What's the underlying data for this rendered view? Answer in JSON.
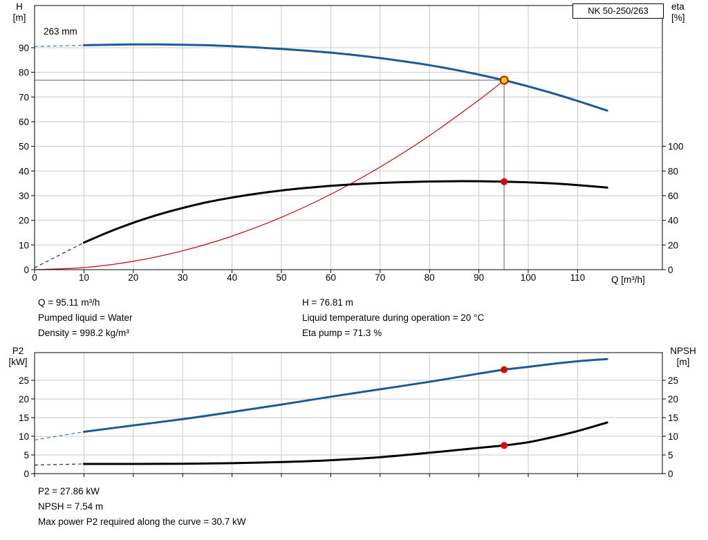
{
  "header": {
    "pump_name": "NK 50-250/263"
  },
  "top_chart": {
    "ylabel_left": [
      "H",
      "[m]"
    ],
    "ylabel_right": [
      "eta",
      "[%]"
    ],
    "xlabel": "Q [m³/h]",
    "impeller_label": "263 mm"
  },
  "bottom_chart": {
    "ylabel_left": [
      "P2",
      "[kW]"
    ],
    "ylabel_right": [
      "NPSH",
      "[m]"
    ]
  },
  "results_top": {
    "left": [
      "Q = 95.11 m³/h",
      "Pumped liquid = Water",
      "Density = 998.2 kg/m³"
    ],
    "right": [
      "H = 76.81 m",
      "Liquid temperature during operation = 20 °C",
      "Eta pump = 71.3 %"
    ]
  },
  "results_bottom": [
    "P2 = 27.86 kW",
    "NPSH = 7.54 m",
    "Max power P2 required along the curve = 30.7 kW"
  ],
  "colors": {
    "head": "#1a5a96",
    "eta": "#000000",
    "system": "#d40000",
    "marker": "#e00000",
    "duty_fill": "#ffd600"
  },
  "chart_data": [
    {
      "type": "line",
      "name": "head-efficiency-chart",
      "title": "NK 50-250/263",
      "xlabel": "Q [m³/h]",
      "ylabel": "H [m]",
      "y2label": "eta [%]",
      "xlim": [
        0,
        127.2
      ],
      "xticks": [
        0,
        10,
        20,
        30,
        40,
        50,
        60,
        70,
        80,
        90,
        100,
        110
      ],
      "ylim": [
        0,
        107.1
      ],
      "yticks": [
        0,
        10,
        20,
        30,
        40,
        50,
        60,
        70,
        80,
        90
      ],
      "y2lim": [
        0,
        214.3
      ],
      "y2ticks": [
        0,
        20,
        40,
        60,
        80,
        100
      ],
      "grid": true,
      "duty_point": {
        "x": 95.11,
        "y": 76.81,
        "y2": 71.3
      },
      "series": [
        {
          "name": "system-curve",
          "label": "System curve",
          "color": "#d40000",
          "width": 1.2,
          "axis": "y",
          "points": [
            [
              0,
              0
            ],
            [
              10,
              0.85
            ],
            [
              20,
              3.4
            ],
            [
              30,
              7.64
            ],
            [
              40,
              13.59
            ],
            [
              50,
              21.23
            ],
            [
              60,
              30.57
            ],
            [
              70,
              41.62
            ],
            [
              80,
              54.36
            ],
            [
              90,
              68.79
            ],
            [
              95.11,
              76.81
            ]
          ]
        },
        {
          "name": "efficiency-curve",
          "label": "Eta pump",
          "color": "#000000",
          "width": 3,
          "axis": "y2",
          "dash_lead": [
            [
              0,
              1.5
            ],
            [
              10,
              22
            ]
          ],
          "points": [
            [
              10,
              22
            ],
            [
              15,
              30.5
            ],
            [
              20,
              38
            ],
            [
              25,
              44.5
            ],
            [
              30,
              50
            ],
            [
              35,
              54.7
            ],
            [
              40,
              58.5
            ],
            [
              45,
              61.6
            ],
            [
              50,
              64.2
            ],
            [
              55,
              66.3
            ],
            [
              60,
              68
            ],
            [
              65,
              69.3
            ],
            [
              70,
              70.3
            ],
            [
              75,
              71
            ],
            [
              80,
              71.5
            ],
            [
              85,
              71.7
            ],
            [
              90,
              71.7
            ],
            [
              95.11,
              71.3
            ],
            [
              100,
              70.8
            ],
            [
              105,
              69.9
            ],
            [
              110,
              68.6
            ],
            [
              116,
              66.6
            ]
          ]
        },
        {
          "name": "head-curve-263mm",
          "label": "263 mm",
          "color": "#1a5a96",
          "width": 3,
          "axis": "y",
          "dash_lead": [
            [
              0,
              90.5
            ],
            [
              10,
              91
            ]
          ],
          "points": [
            [
              10,
              91
            ],
            [
              15,
              91.2
            ],
            [
              20,
              91.3
            ],
            [
              25,
              91.3
            ],
            [
              30,
              91.2
            ],
            [
              35,
              91
            ],
            [
              40,
              90.6
            ],
            [
              45,
              90.1
            ],
            [
              50,
              89.5
            ],
            [
              55,
              88.8
            ],
            [
              60,
              88
            ],
            [
              65,
              87
            ],
            [
              70,
              85.8
            ],
            [
              75,
              84.4
            ],
            [
              80,
              82.9
            ],
            [
              85,
              81.1
            ],
            [
              90,
              79.1
            ],
            [
              95.11,
              76.81
            ],
            [
              100,
              74.3
            ],
            [
              105,
              71.5
            ],
            [
              110,
              68.4
            ],
            [
              116,
              64.5
            ]
          ]
        }
      ]
    },
    {
      "type": "line",
      "name": "power-npsh-chart",
      "ylabel": "P2 [kW]",
      "y2label": "NPSH [m]",
      "xlim": [
        0,
        127.2
      ],
      "xticks": [
        0,
        10,
        20,
        30,
        40,
        50,
        60,
        70,
        80,
        90,
        100,
        110
      ],
      "ylim": [
        0,
        32.4
      ],
      "yticks": [
        0,
        5,
        10,
        15,
        20,
        25
      ],
      "y2lim": [
        0,
        32.4
      ],
      "y2ticks": [
        0,
        5,
        10,
        15,
        20,
        25
      ],
      "grid": true,
      "series": [
        {
          "name": "p2-curve",
          "label": "P2",
          "color": "#1a5a96",
          "width": 3,
          "axis": "y",
          "dash_lead": [
            [
              0,
              9
            ],
            [
              10,
              11.2
            ]
          ],
          "points": [
            [
              10,
              11.2
            ],
            [
              20,
              12.9
            ],
            [
              30,
              14.6
            ],
            [
              40,
              16.5
            ],
            [
              50,
              18.5
            ],
            [
              60,
              20.6
            ],
            [
              70,
              22.6
            ],
            [
              80,
              24.6
            ],
            [
              90,
              26.8
            ],
            [
              95.11,
              27.86
            ],
            [
              100,
              28.6
            ],
            [
              105,
              29.4
            ],
            [
              110,
              30.1
            ],
            [
              116,
              30.7
            ]
          ],
          "marker": {
            "x": 95.11,
            "y": 27.86
          }
        },
        {
          "name": "npsh-curve",
          "label": "NPSH",
          "color": "#000000",
          "width": 3,
          "axis": "y2",
          "dash_lead": [
            [
              0,
              2.3
            ],
            [
              10,
              2.6
            ]
          ],
          "points": [
            [
              10,
              2.6
            ],
            [
              20,
              2.6
            ],
            [
              30,
              2.65
            ],
            [
              40,
              2.8
            ],
            [
              50,
              3.1
            ],
            [
              60,
              3.6
            ],
            [
              70,
              4.4
            ],
            [
              80,
              5.6
            ],
            [
              90,
              6.9
            ],
            [
              95.11,
              7.54
            ],
            [
              100,
              8.4
            ],
            [
              105,
              9.8
            ],
            [
              110,
              11.4
            ],
            [
              116,
              13.7
            ]
          ],
          "marker": {
            "x": 95.11,
            "y": 7.54
          }
        }
      ]
    }
  ]
}
